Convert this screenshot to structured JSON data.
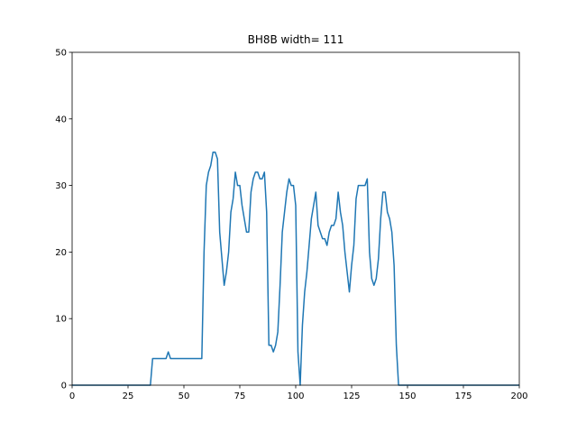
{
  "chart_data": {
    "type": "line",
    "title": "BH8B width= 111",
    "x": [
      0,
      35,
      36,
      42,
      43,
      44,
      58,
      59,
      60,
      61,
      62,
      63,
      64,
      65,
      66,
      67,
      68,
      69,
      70,
      71,
      72,
      73,
      74,
      75,
      76,
      77,
      78,
      79,
      80,
      81,
      82,
      83,
      84,
      85,
      86,
      87,
      88,
      89,
      90,
      91,
      92,
      93,
      94,
      95,
      96,
      97,
      98,
      99,
      100,
      101,
      102,
      103,
      104,
      105,
      106,
      107,
      108,
      109,
      110,
      111,
      112,
      113,
      114,
      115,
      116,
      117,
      118,
      119,
      120,
      121,
      122,
      123,
      124,
      125,
      126,
      127,
      128,
      129,
      130,
      131,
      132,
      133,
      134,
      135,
      136,
      137,
      138,
      139,
      140,
      141,
      142,
      143,
      144,
      145,
      146,
      200
    ],
    "values": [
      0,
      0,
      4,
      4,
      5,
      4,
      4,
      20,
      30,
      32,
      33,
      35,
      35,
      34,
      23,
      19,
      15,
      17,
      20,
      26,
      28,
      32,
      30,
      30,
      27,
      25,
      23,
      23,
      29,
      31,
      32,
      32,
      31,
      31,
      32,
      26,
      6,
      6,
      5,
      6,
      8,
      15,
      23,
      26,
      29,
      31,
      30,
      30,
      27,
      5,
      0,
      9,
      14,
      17,
      21,
      25,
      27,
      29,
      24,
      23,
      22,
      22,
      21,
      23,
      24,
      24,
      25,
      29,
      26,
      24,
      20,
      17,
      14,
      18,
      21,
      28,
      30,
      30,
      30,
      30,
      31,
      20,
      16,
      15,
      16,
      19,
      25,
      29,
      29,
      26,
      25,
      23,
      18,
      6,
      0,
      0
    ],
    "color": "#1f77b4",
    "xlim": [
      0,
      200
    ],
    "xticks": [
      0,
      25,
      50,
      75,
      100,
      125,
      150,
      175,
      200
    ],
    "ylim": [
      0,
      50
    ],
    "yticks": [
      0,
      10,
      20,
      30,
      40,
      50
    ]
  }
}
